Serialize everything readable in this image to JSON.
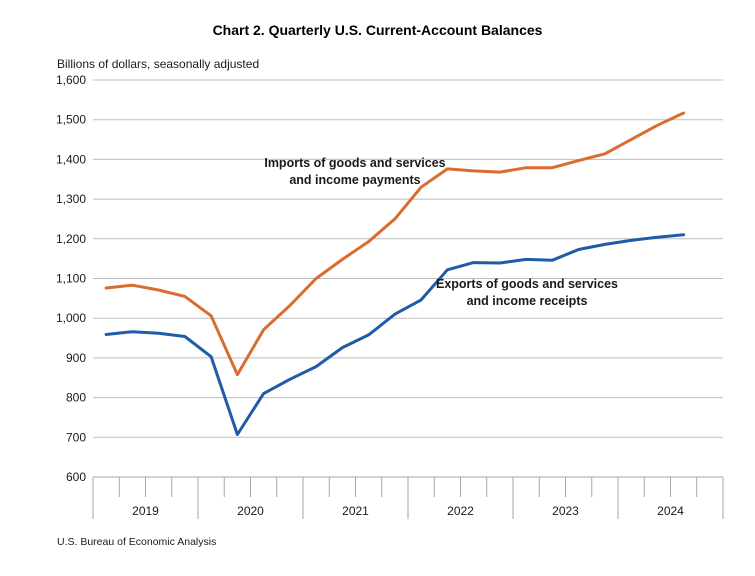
{
  "chart_data": {
    "type": "line",
    "title": "Chart 2. Quarterly U.S. Current-Account Balances",
    "units_label": "Billions of dollars, seasonally adjusted",
    "source": "U.S. Bureau of Economic Analysis",
    "x": [
      "2019 Q1",
      "2019 Q2",
      "2019 Q3",
      "2019 Q4",
      "2020 Q1",
      "2020 Q2",
      "2020 Q3",
      "2020 Q4",
      "2021 Q1",
      "2021 Q2",
      "2021 Q3",
      "2021 Q4",
      "2022 Q1",
      "2022 Q2",
      "2022 Q3",
      "2022 Q4",
      "2023 Q1",
      "2023 Q2",
      "2023 Q3",
      "2023 Q4",
      "2024 Q1",
      "2024 Q2",
      "2024 Q3"
    ],
    "x_year_labels": [
      "2019",
      "2020",
      "2021",
      "2022",
      "2023",
      "2024"
    ],
    "quarters_per_year": 4,
    "series": [
      {
        "name": "Imports of goods and services and income payments",
        "label_lines": [
          "Imports of goods and services",
          "and income payments"
        ],
        "color": "#D96C2E",
        "values": [
          1076,
          1083,
          1071,
          1055,
          1006,
          858,
          971,
          1032,
          1100,
          1148,
          1193,
          1250,
          1330,
          1376,
          1371,
          1368,
          1379,
          1379,
          1397,
          1414,
          1450,
          1486,
          1517
        ]
      },
      {
        "name": "Exports of goods and services and income receipts",
        "label_lines": [
          "Exports of goods and services",
          "and income receipts"
        ],
        "color": "#1E5CA8",
        "values": [
          959,
          966,
          962,
          954,
          903,
          707,
          810,
          846,
          878,
          926,
          958,
          1010,
          1046,
          1122,
          1140,
          1139,
          1148,
          1146,
          1173,
          1186,
          1196,
          1204,
          1210
        ]
      }
    ],
    "ylim": [
      600,
      1600
    ],
    "y_tick_step": 100,
    "y_tick_labels": [
      "600",
      "700",
      "800",
      "900",
      "1,000",
      "1,100",
      "1,200",
      "1,300",
      "1,400",
      "1,500",
      "1,600"
    ],
    "grid": true,
    "legend_position": "inline-annotations",
    "colors": {
      "gridline": "#BDBDBD",
      "axis": "#A6A6A6",
      "text": "#1a1a1a"
    }
  }
}
